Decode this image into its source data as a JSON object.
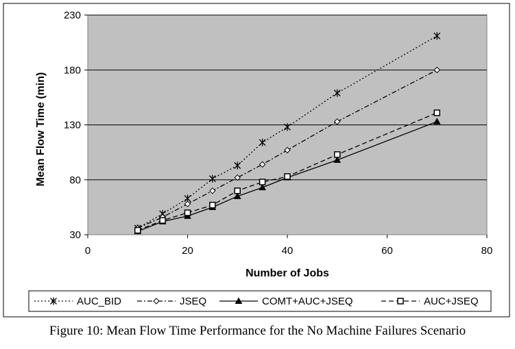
{
  "caption": "Figure 10:  Mean Flow Time Performance for the No Machine Failures Scenario",
  "chart_data": {
    "type": "line",
    "title": "",
    "xlabel": "Number of Jobs",
    "ylabel": "Mean Flow Time (min)",
    "xlim": [
      0,
      80
    ],
    "ylim": [
      30,
      230
    ],
    "xticks": [
      0,
      20,
      40,
      60,
      80
    ],
    "yticks": [
      30,
      80,
      130,
      180,
      230
    ],
    "grid": "horizontal",
    "legend_position": "bottom",
    "plot_background": "#c0c0c0",
    "series": [
      {
        "name": "AUC_BID",
        "marker": "star",
        "line_style": "dotted",
        "x": [
          10,
          15,
          20,
          25,
          30,
          35,
          40,
          50,
          70
        ],
        "y": [
          36,
          49,
          63,
          81,
          93,
          114,
          128,
          159,
          211
        ]
      },
      {
        "name": "JSEQ",
        "marker": "diamond",
        "line_style": "dash-dot",
        "x": [
          10,
          15,
          20,
          25,
          30,
          35,
          40,
          50,
          70
        ],
        "y": [
          36,
          46,
          58,
          70,
          82,
          94,
          107,
          133,
          180
        ]
      },
      {
        "name": "COMT+AUC+JSEQ",
        "marker": "triangle",
        "line_style": "solid",
        "x": [
          10,
          15,
          20,
          25,
          30,
          35,
          40,
          50,
          70
        ],
        "y": [
          33,
          42,
          47,
          55,
          65,
          73,
          82,
          98,
          133
        ]
      },
      {
        "name": "AUC+JSEQ",
        "marker": "square",
        "line_style": "dashed",
        "x": [
          10,
          15,
          20,
          25,
          30,
          35,
          40,
          50,
          70
        ],
        "y": [
          34,
          43,
          50,
          57,
          70,
          78,
          83,
          103,
          141
        ]
      }
    ]
  }
}
